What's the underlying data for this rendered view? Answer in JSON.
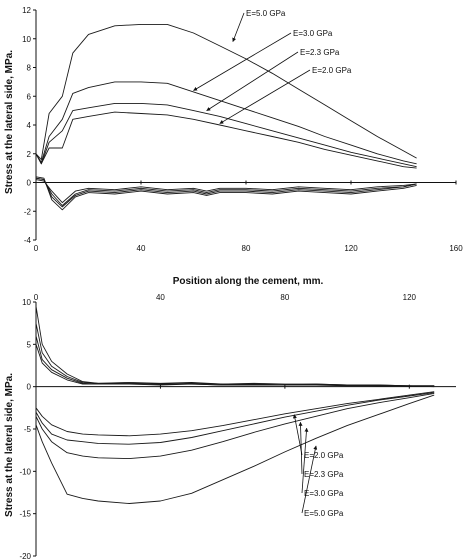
{
  "chart_data": [
    {
      "type": "line",
      "xlabel": "Position along the cement, mm.",
      "ylabel": "Stress at the lateral side, MPa.",
      "xlim": [
        0,
        160
      ],
      "ylim": [
        -4,
        12
      ],
      "xticks": [
        0,
        40,
        80,
        120,
        160
      ],
      "yticks": [
        -4,
        -2,
        0,
        2,
        4,
        6,
        8,
        10,
        12
      ],
      "xtick_labels": [
        "0",
        "40",
        "80",
        "120",
        "160"
      ],
      "ytick_labels": [
        "-4",
        "-2",
        "0",
        "2",
        "4",
        "6",
        "8",
        "10",
        "12"
      ],
      "x_axis_position": "bottom",
      "grid": false,
      "legend": "none",
      "series": [
        {
          "name": "E=5.0 GPa",
          "group": "upper",
          "x": [
            0,
            2,
            5,
            10,
            14,
            20,
            30,
            40,
            50,
            60,
            70,
            80,
            90,
            100,
            110,
            120,
            130,
            140,
            145
          ],
          "y": [
            2.0,
            1.6,
            4.8,
            6.0,
            9.0,
            10.3,
            10.9,
            11.0,
            11.0,
            10.4,
            9.5,
            8.6,
            7.6,
            6.5,
            5.4,
            4.3,
            3.2,
            2.2,
            1.7
          ]
        },
        {
          "name": "E=3.0 GPa",
          "group": "upper",
          "x": [
            0,
            2,
            5,
            10,
            14,
            20,
            30,
            40,
            50,
            60,
            70,
            80,
            90,
            100,
            110,
            120,
            130,
            140,
            145
          ],
          "y": [
            2.0,
            1.4,
            3.2,
            4.4,
            6.2,
            6.6,
            7.0,
            7.0,
            6.9,
            6.3,
            5.7,
            5.1,
            4.5,
            3.9,
            3.2,
            2.6,
            2.0,
            1.5,
            1.3
          ]
        },
        {
          "name": "E=2.3 GPa",
          "group": "upper",
          "x": [
            0,
            2,
            5,
            10,
            14,
            20,
            30,
            40,
            50,
            60,
            70,
            80,
            90,
            100,
            110,
            120,
            130,
            140,
            145
          ],
          "y": [
            2.0,
            1.3,
            2.8,
            3.6,
            5.0,
            5.2,
            5.5,
            5.5,
            5.4,
            5.0,
            4.6,
            4.1,
            3.6,
            3.1,
            2.6,
            2.1,
            1.7,
            1.3,
            1.1
          ]
        },
        {
          "name": "E=2.0 GPa",
          "group": "upper",
          "x": [
            0,
            2,
            5,
            10,
            14,
            20,
            30,
            40,
            50,
            60,
            70,
            80,
            90,
            100,
            110,
            120,
            130,
            140,
            145
          ],
          "y": [
            2.0,
            1.3,
            2.4,
            2.4,
            4.4,
            4.6,
            4.9,
            4.8,
            4.7,
            4.4,
            4.0,
            3.6,
            3.2,
            2.8,
            2.3,
            1.9,
            1.5,
            1.1,
            1.0
          ]
        },
        {
          "name": "",
          "group": "lower",
          "x": [
            0,
            3,
            6,
            10,
            15,
            20,
            30,
            40,
            50,
            60,
            65,
            70,
            80,
            90,
            100,
            110,
            120,
            130,
            140,
            145
          ],
          "y": [
            0.2,
            0.1,
            -0.6,
            -1.4,
            -0.6,
            -0.4,
            -0.5,
            -0.3,
            -0.5,
            -0.4,
            -0.6,
            -0.4,
            -0.4,
            -0.5,
            -0.3,
            -0.4,
            -0.5,
            -0.3,
            -0.2,
            -0.1
          ]
        },
        {
          "name": "",
          "group": "lower",
          "x": [
            0,
            3,
            6,
            10,
            15,
            20,
            30,
            40,
            50,
            60,
            65,
            70,
            80,
            90,
            100,
            110,
            120,
            130,
            140,
            145
          ],
          "y": [
            0.3,
            0.2,
            -0.8,
            -1.6,
            -0.8,
            -0.5,
            -0.6,
            -0.4,
            -0.6,
            -0.5,
            -0.7,
            -0.5,
            -0.5,
            -0.6,
            -0.4,
            -0.5,
            -0.6,
            -0.4,
            -0.3,
            -0.1
          ]
        },
        {
          "name": "",
          "group": "lower",
          "x": [
            0,
            3,
            6,
            10,
            15,
            20,
            30,
            40,
            50,
            60,
            65,
            70,
            80,
            90,
            100,
            110,
            120,
            130,
            140,
            145
          ],
          "y": [
            0.3,
            0.2,
            -1.0,
            -1.7,
            -0.9,
            -0.6,
            -0.7,
            -0.5,
            -0.7,
            -0.6,
            -0.8,
            -0.6,
            -0.6,
            -0.7,
            -0.5,
            -0.6,
            -0.7,
            -0.5,
            -0.3,
            -0.1
          ]
        },
        {
          "name": "",
          "group": "lower",
          "x": [
            0,
            3,
            6,
            10,
            15,
            20,
            30,
            40,
            50,
            60,
            65,
            70,
            80,
            90,
            100,
            110,
            120,
            130,
            140,
            145
          ],
          "y": [
            0.4,
            0.3,
            -1.2,
            -1.9,
            -1.0,
            -0.7,
            -0.8,
            -0.6,
            -0.8,
            -0.7,
            -0.9,
            -0.7,
            -0.7,
            -0.8,
            -0.6,
            -0.7,
            -0.8,
            -0.6,
            -0.4,
            -0.2
          ]
        }
      ],
      "annotations": [
        {
          "text": "E=5.0 GPa",
          "point": [
            75,
            9.8
          ]
        },
        {
          "text": "E=3.0 GPa",
          "point": [
            60,
            6.4
          ]
        },
        {
          "text": "E=2.3 GPa",
          "point": [
            65,
            5.0
          ]
        },
        {
          "text": "E=2.0 GPa",
          "point": [
            70,
            4.1
          ]
        }
      ]
    },
    {
      "type": "line",
      "xlabel": "Position along the cement, mm.",
      "ylabel": "Stress at the lateral side, MPa.",
      "xlim": [
        0,
        135
      ],
      "ylim": [
        -20,
        10
      ],
      "xticks": [
        0,
        40,
        80,
        120
      ],
      "yticks": [
        -20,
        -15,
        -10,
        -5,
        0,
        5,
        10
      ],
      "xtick_labels": [
        "0",
        "40",
        "80",
        "120"
      ],
      "ytick_labels": [
        "-20",
        "-15",
        "-10",
        "-5",
        "0",
        "5",
        "10"
      ],
      "x_axis_position": "top",
      "grid": false,
      "legend": "none",
      "series": [
        {
          "name": "",
          "group": "upper",
          "x": [
            0,
            2,
            5,
            10,
            15,
            20,
            30,
            40,
            50,
            60,
            70,
            80,
            90,
            100,
            110,
            120,
            128
          ],
          "y": [
            9.5,
            5.0,
            3.0,
            1.5,
            0.6,
            0.4,
            0.5,
            0.4,
            0.5,
            0.3,
            0.4,
            0.3,
            0.3,
            0.2,
            0.2,
            0.1,
            0.1
          ]
        },
        {
          "name": "",
          "group": "upper",
          "x": [
            0,
            2,
            5,
            10,
            15,
            20,
            30,
            40,
            50,
            60,
            70,
            80,
            90,
            100,
            110,
            120,
            128
          ],
          "y": [
            7.5,
            4.0,
            2.4,
            1.2,
            0.5,
            0.4,
            0.4,
            0.3,
            0.4,
            0.3,
            0.3,
            0.2,
            0.3,
            0.2,
            0.2,
            0.1,
            0.1
          ]
        },
        {
          "name": "",
          "group": "upper",
          "x": [
            0,
            2,
            5,
            10,
            15,
            20,
            30,
            40,
            50,
            60,
            70,
            80,
            90,
            100,
            110,
            120,
            128
          ],
          "y": [
            6.0,
            3.2,
            2.0,
            1.0,
            0.4,
            0.3,
            0.4,
            0.3,
            0.3,
            0.2,
            0.3,
            0.2,
            0.2,
            0.2,
            0.1,
            0.1,
            0.1
          ]
        },
        {
          "name": "",
          "group": "upper",
          "x": [
            0,
            2,
            5,
            10,
            15,
            20,
            30,
            40,
            50,
            60,
            70,
            80,
            90,
            100,
            110,
            120,
            128
          ],
          "y": [
            5.0,
            2.8,
            1.7,
            0.8,
            0.3,
            0.3,
            0.3,
            0.2,
            0.3,
            0.2,
            0.2,
            0.2,
            0.2,
            0.1,
            0.1,
            0.1,
            0.0
          ]
        },
        {
          "name": "E=2.0 GPa",
          "group": "lower",
          "x": [
            0,
            2,
            5,
            10,
            15,
            20,
            30,
            40,
            50,
            60,
            70,
            80,
            90,
            100,
            110,
            120,
            128
          ],
          "y": [
            -2.5,
            -3.5,
            -4.5,
            -5.3,
            -5.6,
            -5.7,
            -5.8,
            -5.6,
            -5.2,
            -4.6,
            -3.9,
            -3.2,
            -2.6,
            -2.0,
            -1.5,
            -1.0,
            -0.6
          ]
        },
        {
          "name": "E=2.3 GPa",
          "group": "lower",
          "x": [
            0,
            2,
            5,
            10,
            15,
            20,
            30,
            40,
            50,
            60,
            70,
            80,
            90,
            100,
            110,
            120,
            128
          ],
          "y": [
            -3.0,
            -4.3,
            -5.6,
            -6.3,
            -6.5,
            -6.7,
            -6.8,
            -6.6,
            -6.0,
            -5.2,
            -4.4,
            -3.6,
            -2.9,
            -2.2,
            -1.6,
            -1.1,
            -0.7
          ]
        },
        {
          "name": "E=3.0 GPa",
          "group": "lower",
          "x": [
            0,
            2,
            5,
            10,
            15,
            20,
            30,
            40,
            50,
            60,
            70,
            80,
            90,
            100,
            110,
            120,
            128
          ],
          "y": [
            -3.5,
            -5.0,
            -6.5,
            -7.8,
            -8.2,
            -8.4,
            -8.5,
            -8.2,
            -7.5,
            -6.5,
            -5.4,
            -4.4,
            -3.5,
            -2.6,
            -1.9,
            -1.3,
            -0.8
          ]
        },
        {
          "name": "E=5.0 GPa",
          "group": "lower",
          "x": [
            0,
            2,
            5,
            10,
            15,
            20,
            30,
            40,
            50,
            60,
            70,
            80,
            90,
            100,
            110,
            120,
            128
          ],
          "y": [
            -4.5,
            -6.5,
            -9.0,
            -12.7,
            -13.2,
            -13.5,
            -13.8,
            -13.5,
            -12.6,
            -11.0,
            -9.4,
            -7.7,
            -6.1,
            -4.6,
            -3.3,
            -2.0,
            -1.0
          ]
        }
      ],
      "annotations": [
        {
          "text": "E=2.0 GPa",
          "point": [
            83,
            -3.3
          ]
        },
        {
          "text": "E=2.3 GPa",
          "point": [
            85,
            -4.2
          ]
        },
        {
          "text": "E=3.0 GPa",
          "point": [
            87,
            -4.9
          ]
        },
        {
          "text": "E=5.0 GPa",
          "point": [
            90,
            -7.0
          ]
        }
      ]
    }
  ]
}
